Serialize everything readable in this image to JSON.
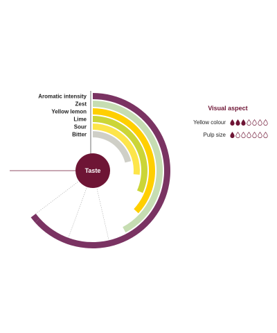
{
  "chart_data": {
    "type": "radial-bar",
    "center_label": "Taste",
    "scale_max": 6,
    "categories": [
      "Aromatic intensity",
      "Zest",
      "Yellow lemon",
      "Lime",
      "Sour",
      "Bitter"
    ],
    "values": [
      6,
      4,
      3.5,
      3,
      2.5,
      2
    ],
    "colors": [
      "#7a3362",
      "#c6ddb2",
      "#ffcf00",
      "#cbd537",
      "#fde54a",
      "#cfcfc7"
    ]
  },
  "legend": {
    "title": "Visual aspect",
    "rows": [
      {
        "label": "Yellow colour",
        "filled": 3,
        "total": 7
      },
      {
        "label": "Pulp size",
        "filled": 1,
        "total": 7
      }
    ]
  },
  "colors": {
    "accent": "#6e1535",
    "hub": "#6e1535",
    "outline": "#aaaaaa"
  }
}
